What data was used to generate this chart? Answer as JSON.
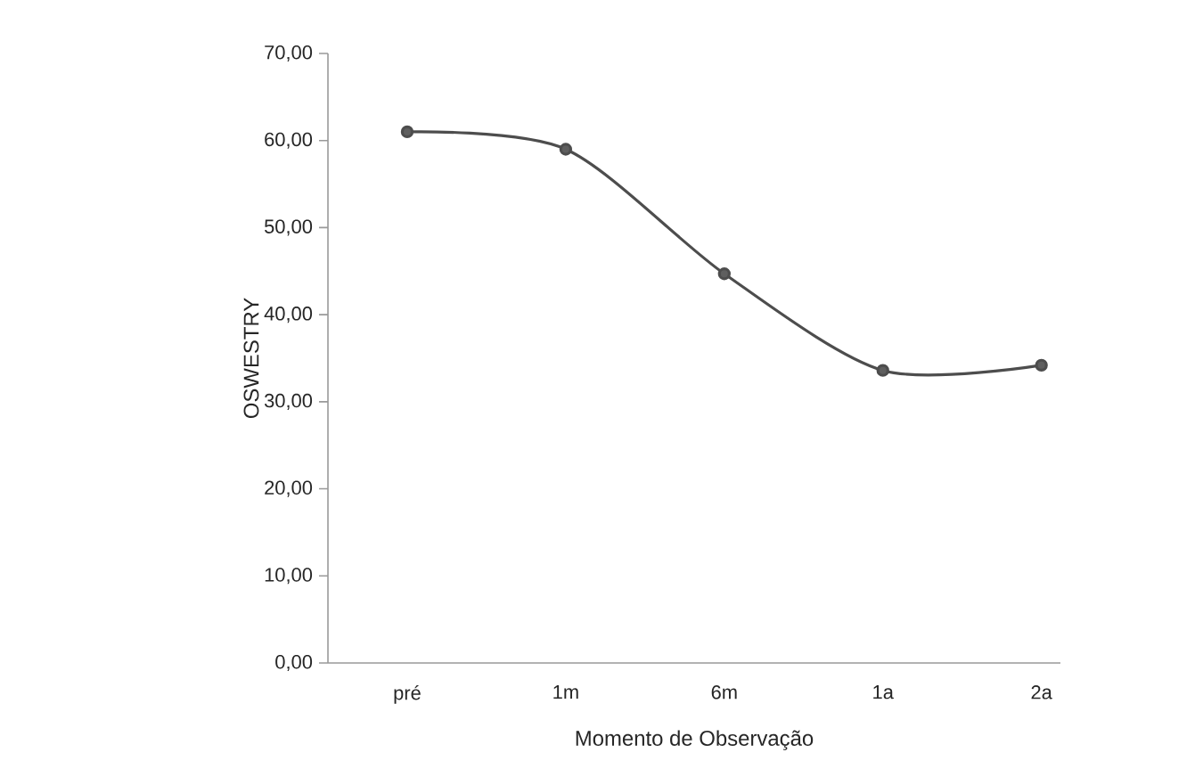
{
  "chart_data": {
    "type": "line",
    "xlabel": "Momento de Observação",
    "ylabel": "OSWESTRY",
    "categories": [
      "pré",
      "1m",
      "6m",
      "1a",
      "2a"
    ],
    "values": [
      61.0,
      59.0,
      44.7,
      33.6,
      34.2
    ],
    "color": "#4d4d4d",
    "marker": "circle",
    "line_style": "solid",
    "ylim": [
      0,
      70
    ],
    "yticks": [
      {
        "value": 0,
        "label": "0,00"
      },
      {
        "value": 10,
        "label": "10,00"
      },
      {
        "value": 20,
        "label": "20,00"
      },
      {
        "value": 30,
        "label": "30,00"
      },
      {
        "value": 40,
        "label": "40,00"
      },
      {
        "value": 50,
        "label": "50,00"
      },
      {
        "value": 60,
        "label": "60,00"
      },
      {
        "value": 70,
        "label": "70,00"
      }
    ]
  }
}
